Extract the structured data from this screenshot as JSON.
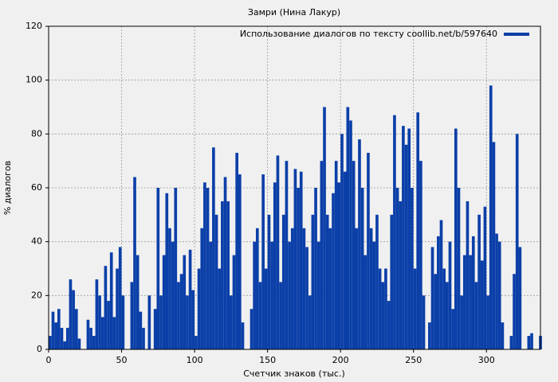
{
  "chart_data": {
    "type": "bar",
    "title": "Замри (Нина Лакур)",
    "x_label": "Счетчик знаков (тыс.)",
    "y_label": "% диалогов",
    "series": [
      {
        "name": "Использование диалогов по тексту coollib.net/b/597640",
        "color": "#0b3fa8",
        "values": [
          5,
          14,
          10,
          15,
          8,
          3,
          8,
          26,
          22,
          15,
          4,
          0,
          0,
          11,
          8,
          5,
          26,
          20,
          12,
          31,
          18,
          36,
          12,
          30,
          38,
          20,
          0,
          0,
          25,
          64,
          35,
          14,
          8,
          0,
          20,
          0,
          15,
          60,
          20,
          35,
          58,
          45,
          40,
          60,
          25,
          28,
          35,
          20,
          37,
          22,
          5,
          30,
          45,
          62,
          60,
          40,
          75,
          50,
          30,
          55,
          64,
          55,
          20,
          35,
          73,
          65,
          10,
          0,
          0,
          15,
          40,
          45,
          25,
          65,
          30,
          50,
          40,
          62,
          72,
          25,
          50,
          70,
          40,
          45,
          67,
          60,
          66,
          45,
          38,
          20,
          50,
          60,
          40,
          70,
          90,
          50,
          45,
          58,
          70,
          62,
          80,
          66,
          90,
          85,
          70,
          45,
          78,
          60,
          35,
          73,
          45,
          40,
          50,
          30,
          25,
          30,
          18,
          50,
          87,
          60,
          55,
          83,
          76,
          82,
          60,
          30,
          88,
          70,
          20,
          0,
          10,
          38,
          28,
          42,
          48,
          30,
          25,
          40,
          15,
          82,
          60,
          20,
          35,
          55,
          35,
          42,
          25,
          50,
          33,
          53,
          20,
          98,
          77,
          43,
          40,
          10,
          0,
          0,
          5,
          28,
          80,
          38,
          0,
          0,
          5,
          6,
          0,
          0,
          5
        ]
      }
    ],
    "x": [
      0,
      2,
      4,
      6,
      8,
      10,
      12,
      14,
      16,
      18,
      20,
      22,
      24,
      26,
      28,
      30,
      32,
      34,
      36,
      38,
      40,
      42,
      44,
      46,
      48,
      50,
      52,
      54,
      56,
      58,
      60,
      62,
      64,
      66,
      68,
      70,
      72,
      74,
      76,
      78,
      80,
      82,
      84,
      86,
      88,
      90,
      92,
      94,
      96,
      98,
      100,
      102,
      104,
      106,
      108,
      110,
      112,
      114,
      116,
      118,
      120,
      122,
      124,
      126,
      128,
      130,
      132,
      134,
      136,
      138,
      140,
      142,
      144,
      146,
      148,
      150,
      152,
      154,
      156,
      158,
      160,
      162,
      164,
      166,
      168,
      170,
      172,
      174,
      176,
      178,
      180,
      182,
      184,
      186,
      188,
      190,
      192,
      194,
      196,
      198,
      200,
      202,
      204,
      206,
      208,
      210,
      212,
      214,
      216,
      218,
      220,
      222,
      224,
      226,
      228,
      230,
      232,
      234,
      236,
      238,
      240,
      242,
      244,
      246,
      248,
      250,
      252,
      254,
      256,
      258,
      260,
      262,
      264,
      266,
      268,
      270,
      272,
      274,
      276,
      278,
      280,
      282,
      284,
      286,
      288,
      290,
      292,
      294,
      296,
      298,
      300,
      302,
      304,
      306,
      308,
      310,
      312,
      314,
      316,
      318,
      320,
      322,
      324,
      326,
      328,
      330,
      332,
      334,
      336
    ],
    "xlim": [
      0,
      337
    ],
    "ylim": [
      0,
      120
    ],
    "xticks": [
      0,
      50,
      100,
      150,
      200,
      250,
      300
    ],
    "yticks": [
      0,
      20,
      40,
      60,
      80,
      100,
      120
    ],
    "grid": true,
    "legend": "upper-right"
  }
}
